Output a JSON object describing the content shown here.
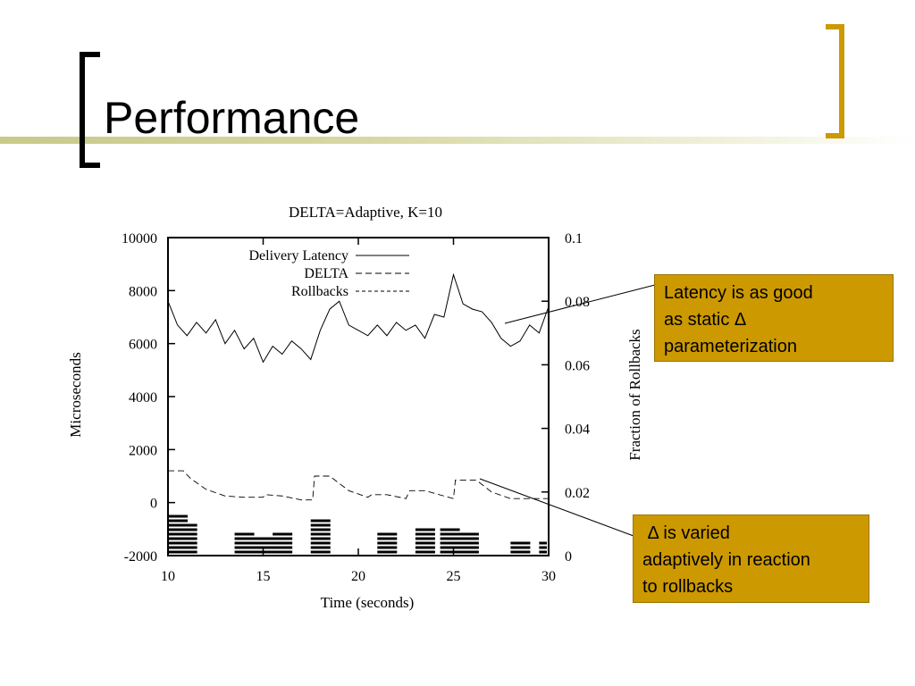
{
  "slide": {
    "title": "Performance",
    "colors": {
      "accent_bracket_left": "#000000",
      "accent_bracket_right": "#cc9900",
      "title_bar": "#d7d7a4",
      "callout_bg": "#cc9900"
    }
  },
  "callouts": [
    {
      "lines": [
        "Latency is as good",
        "as static Δ",
        "parameterization"
      ]
    },
    {
      "lines": [
        " Δ is varied",
        "adaptively in reaction",
        "to rollbacks"
      ]
    }
  ],
  "chart_data": {
    "type": "line",
    "title": "DELTA=Adaptive, K=10",
    "xlabel": "Time (seconds)",
    "ylabel": "Microseconds",
    "y2label": "Fraction of Rollbacks",
    "xlim": [
      10,
      30
    ],
    "ylim": [
      -2000,
      10000
    ],
    "y2lim": [
      0,
      0.1
    ],
    "x_ticks": [
      10,
      15,
      20,
      25,
      30
    ],
    "y_ticks": [
      -2000,
      0,
      2000,
      4000,
      6000,
      8000,
      10000
    ],
    "y2_ticks": [
      "0",
      "0.02",
      "0.04",
      "0.06",
      "0.08",
      "0.1"
    ],
    "y2_tick_values": [
      0,
      0.02,
      0.04,
      0.06,
      0.08,
      0.1
    ],
    "grid": false,
    "legend_position": "top-center",
    "series": [
      {
        "name": "Delivery Latency",
        "style": "solid",
        "axis": "left",
        "x": [
          10,
          10.5,
          11,
          11.5,
          12,
          12.5,
          13,
          13.5,
          14,
          14.5,
          15,
          15.5,
          16,
          16.5,
          17,
          17.5,
          18,
          18.5,
          19,
          19.5,
          20,
          20.5,
          21,
          21.5,
          22,
          22.5,
          23,
          23.5,
          24,
          24.5,
          25,
          25.5,
          26,
          26.5,
          27,
          27.5,
          28,
          28.5,
          29,
          29.5,
          30
        ],
        "values": [
          7600,
          6700,
          6300,
          6800,
          6400,
          6900,
          6000,
          6500,
          5800,
          6200,
          5300,
          5900,
          5600,
          6100,
          5800,
          5400,
          6500,
          7300,
          7600,
          6700,
          6500,
          6300,
          6700,
          6300,
          6800,
          6500,
          6700,
          6200,
          7100,
          7000,
          8600,
          7500,
          7300,
          7200,
          6800,
          6200,
          5900,
          6100,
          6700,
          6400,
          7400
        ]
      },
      {
        "name": "DELTA",
        "style": "dashed",
        "axis": "left",
        "x": [
          10,
          10.8,
          11.2,
          12,
          13,
          14,
          15,
          15.1,
          16,
          17,
          17.6,
          17.7,
          18.5,
          19.5,
          20.5,
          20.7,
          21.5,
          22.5,
          22.7,
          23.5,
          24.5,
          25,
          25.1,
          26.2,
          27,
          28,
          29,
          30
        ],
        "values": [
          1200,
          1200,
          900,
          500,
          250,
          200,
          200,
          300,
          250,
          100,
          100,
          1000,
          1000,
          450,
          200,
          300,
          300,
          150,
          450,
          450,
          250,
          150,
          850,
          850,
          400,
          150,
          150,
          150
        ]
      },
      {
        "name": "Rollbacks",
        "style": "short-dashed",
        "axis": "right",
        "note": "bursts shown as stacked horizontal dashes near the bottom",
        "x": [
          10,
          10.5,
          13.5,
          14.5,
          15.5,
          17.5,
          21,
          23,
          24.3,
          25.3,
          28,
          29.5
        ],
        "values": [
          0.013,
          0.01,
          0.007,
          0.006,
          0.007,
          0.012,
          0.007,
          0.009,
          0.009,
          0.008,
          0.005,
          0.004
        ]
      }
    ]
  }
}
